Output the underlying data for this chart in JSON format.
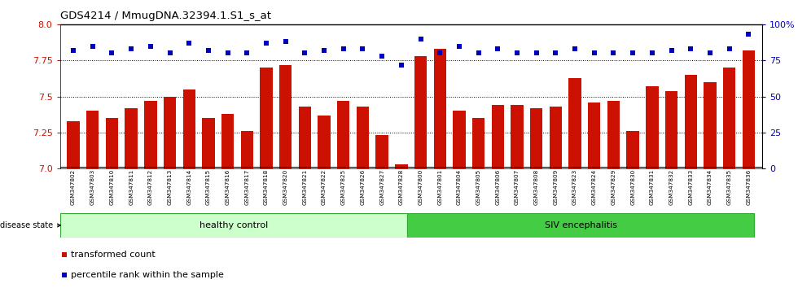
{
  "title": "GDS4214 / MmugDNA.32394.1.S1_s_at",
  "samples": [
    "GSM347802",
    "GSM347803",
    "GSM347810",
    "GSM347811",
    "GSM347812",
    "GSM347813",
    "GSM347814",
    "GSM347815",
    "GSM347816",
    "GSM347817",
    "GSM347818",
    "GSM347820",
    "GSM347821",
    "GSM347822",
    "GSM347825",
    "GSM347826",
    "GSM347827",
    "GSM347828",
    "GSM347800",
    "GSM347801",
    "GSM347804",
    "GSM347805",
    "GSM347806",
    "GSM347807",
    "GSM347808",
    "GSM347809",
    "GSM347823",
    "GSM347824",
    "GSM347829",
    "GSM347830",
    "GSM347831",
    "GSM347832",
    "GSM347833",
    "GSM347834",
    "GSM347835",
    "GSM347836"
  ],
  "bar_values": [
    7.33,
    7.4,
    7.35,
    7.42,
    7.47,
    7.5,
    7.55,
    7.35,
    7.38,
    7.26,
    7.7,
    7.72,
    7.43,
    7.37,
    7.47,
    7.43,
    7.23,
    7.03,
    7.78,
    7.83,
    7.4,
    7.35,
    7.44,
    7.44,
    7.42,
    7.43,
    7.63,
    7.46,
    7.47,
    7.26,
    7.57,
    7.54,
    7.65,
    7.6,
    7.7,
    7.82
  ],
  "percentile_values": [
    82,
    85,
    80,
    83,
    85,
    80,
    87,
    82,
    80,
    80,
    87,
    88,
    80,
    82,
    83,
    83,
    78,
    72,
    90,
    80,
    85,
    80,
    83,
    80,
    80,
    80,
    83,
    80,
    80,
    80,
    80,
    82,
    83,
    80,
    83,
    93
  ],
  "healthy_control_count": 18,
  "group1_label": "healthy control",
  "group2_label": "SIV encephalitis",
  "disease_state_label": "disease state",
  "ylim_left": [
    7.0,
    8.0
  ],
  "ylim_right": [
    0,
    100
  ],
  "yticks_left": [
    7.0,
    7.25,
    7.5,
    7.75,
    8.0
  ],
  "yticks_right": [
    0,
    25,
    50,
    75,
    100
  ],
  "bar_color": "#cc1100",
  "dot_color": "#0000bb",
  "bg_color": "#ffffff",
  "xtick_bg_color": "#cccccc",
  "group1_bg": "#ccffcc",
  "group2_bg": "#44cc44",
  "label_transformed": "transformed count",
  "label_percentile": "percentile rank within the sample"
}
